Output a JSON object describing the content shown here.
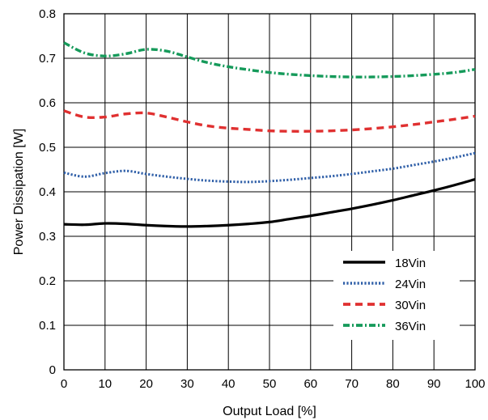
{
  "chart_data": {
    "type": "line",
    "title": "",
    "xlabel": "Output Load [%]",
    "ylabel": "Power Dissipation [W]",
    "xlim": [
      0,
      100
    ],
    "ylim": [
      0,
      0.8
    ],
    "xticks": [
      "0",
      "10",
      "20",
      "30",
      "40",
      "50",
      "60",
      "70",
      "80",
      "90",
      "100"
    ],
    "yticks": [
      "0",
      "0.1",
      "0.2",
      "0.3",
      "0.4",
      "0.5",
      "0.6",
      "0.7",
      "0.8"
    ],
    "grid": true,
    "legend_position": "bottom-right",
    "x": [
      0,
      5,
      10,
      15,
      20,
      25,
      30,
      35,
      40,
      45,
      50,
      55,
      60,
      65,
      70,
      75,
      80,
      85,
      90,
      95,
      100
    ],
    "series": [
      {
        "name": "18Vin",
        "color": "#000000",
        "style": "solid",
        "values": [
          0.327,
          0.326,
          0.329,
          0.328,
          0.325,
          0.323,
          0.322,
          0.323,
          0.325,
          0.328,
          0.332,
          0.339,
          0.346,
          0.354,
          0.362,
          0.371,
          0.381,
          0.392,
          0.403,
          0.415,
          0.428
        ]
      },
      {
        "name": "24Vin",
        "color": "#2f5fa8",
        "style": "dotted",
        "values": [
          0.443,
          0.434,
          0.442,
          0.447,
          0.44,
          0.434,
          0.429,
          0.425,
          0.423,
          0.422,
          0.424,
          0.427,
          0.431,
          0.435,
          0.44,
          0.446,
          0.452,
          0.46,
          0.468,
          0.477,
          0.487
        ]
      },
      {
        "name": "30Vin",
        "color": "#e03030",
        "style": "dashed",
        "values": [
          0.582,
          0.568,
          0.568,
          0.575,
          0.577,
          0.568,
          0.557,
          0.548,
          0.543,
          0.54,
          0.537,
          0.536,
          0.536,
          0.537,
          0.539,
          0.542,
          0.546,
          0.551,
          0.557,
          0.563,
          0.57
        ]
      },
      {
        "name": "36Vin",
        "color": "#159a5a",
        "style": "dashdot",
        "values": [
          0.735,
          0.712,
          0.705,
          0.71,
          0.72,
          0.716,
          0.703,
          0.69,
          0.681,
          0.674,
          0.668,
          0.664,
          0.661,
          0.659,
          0.658,
          0.658,
          0.659,
          0.661,
          0.664,
          0.668,
          0.675
        ]
      }
    ]
  }
}
